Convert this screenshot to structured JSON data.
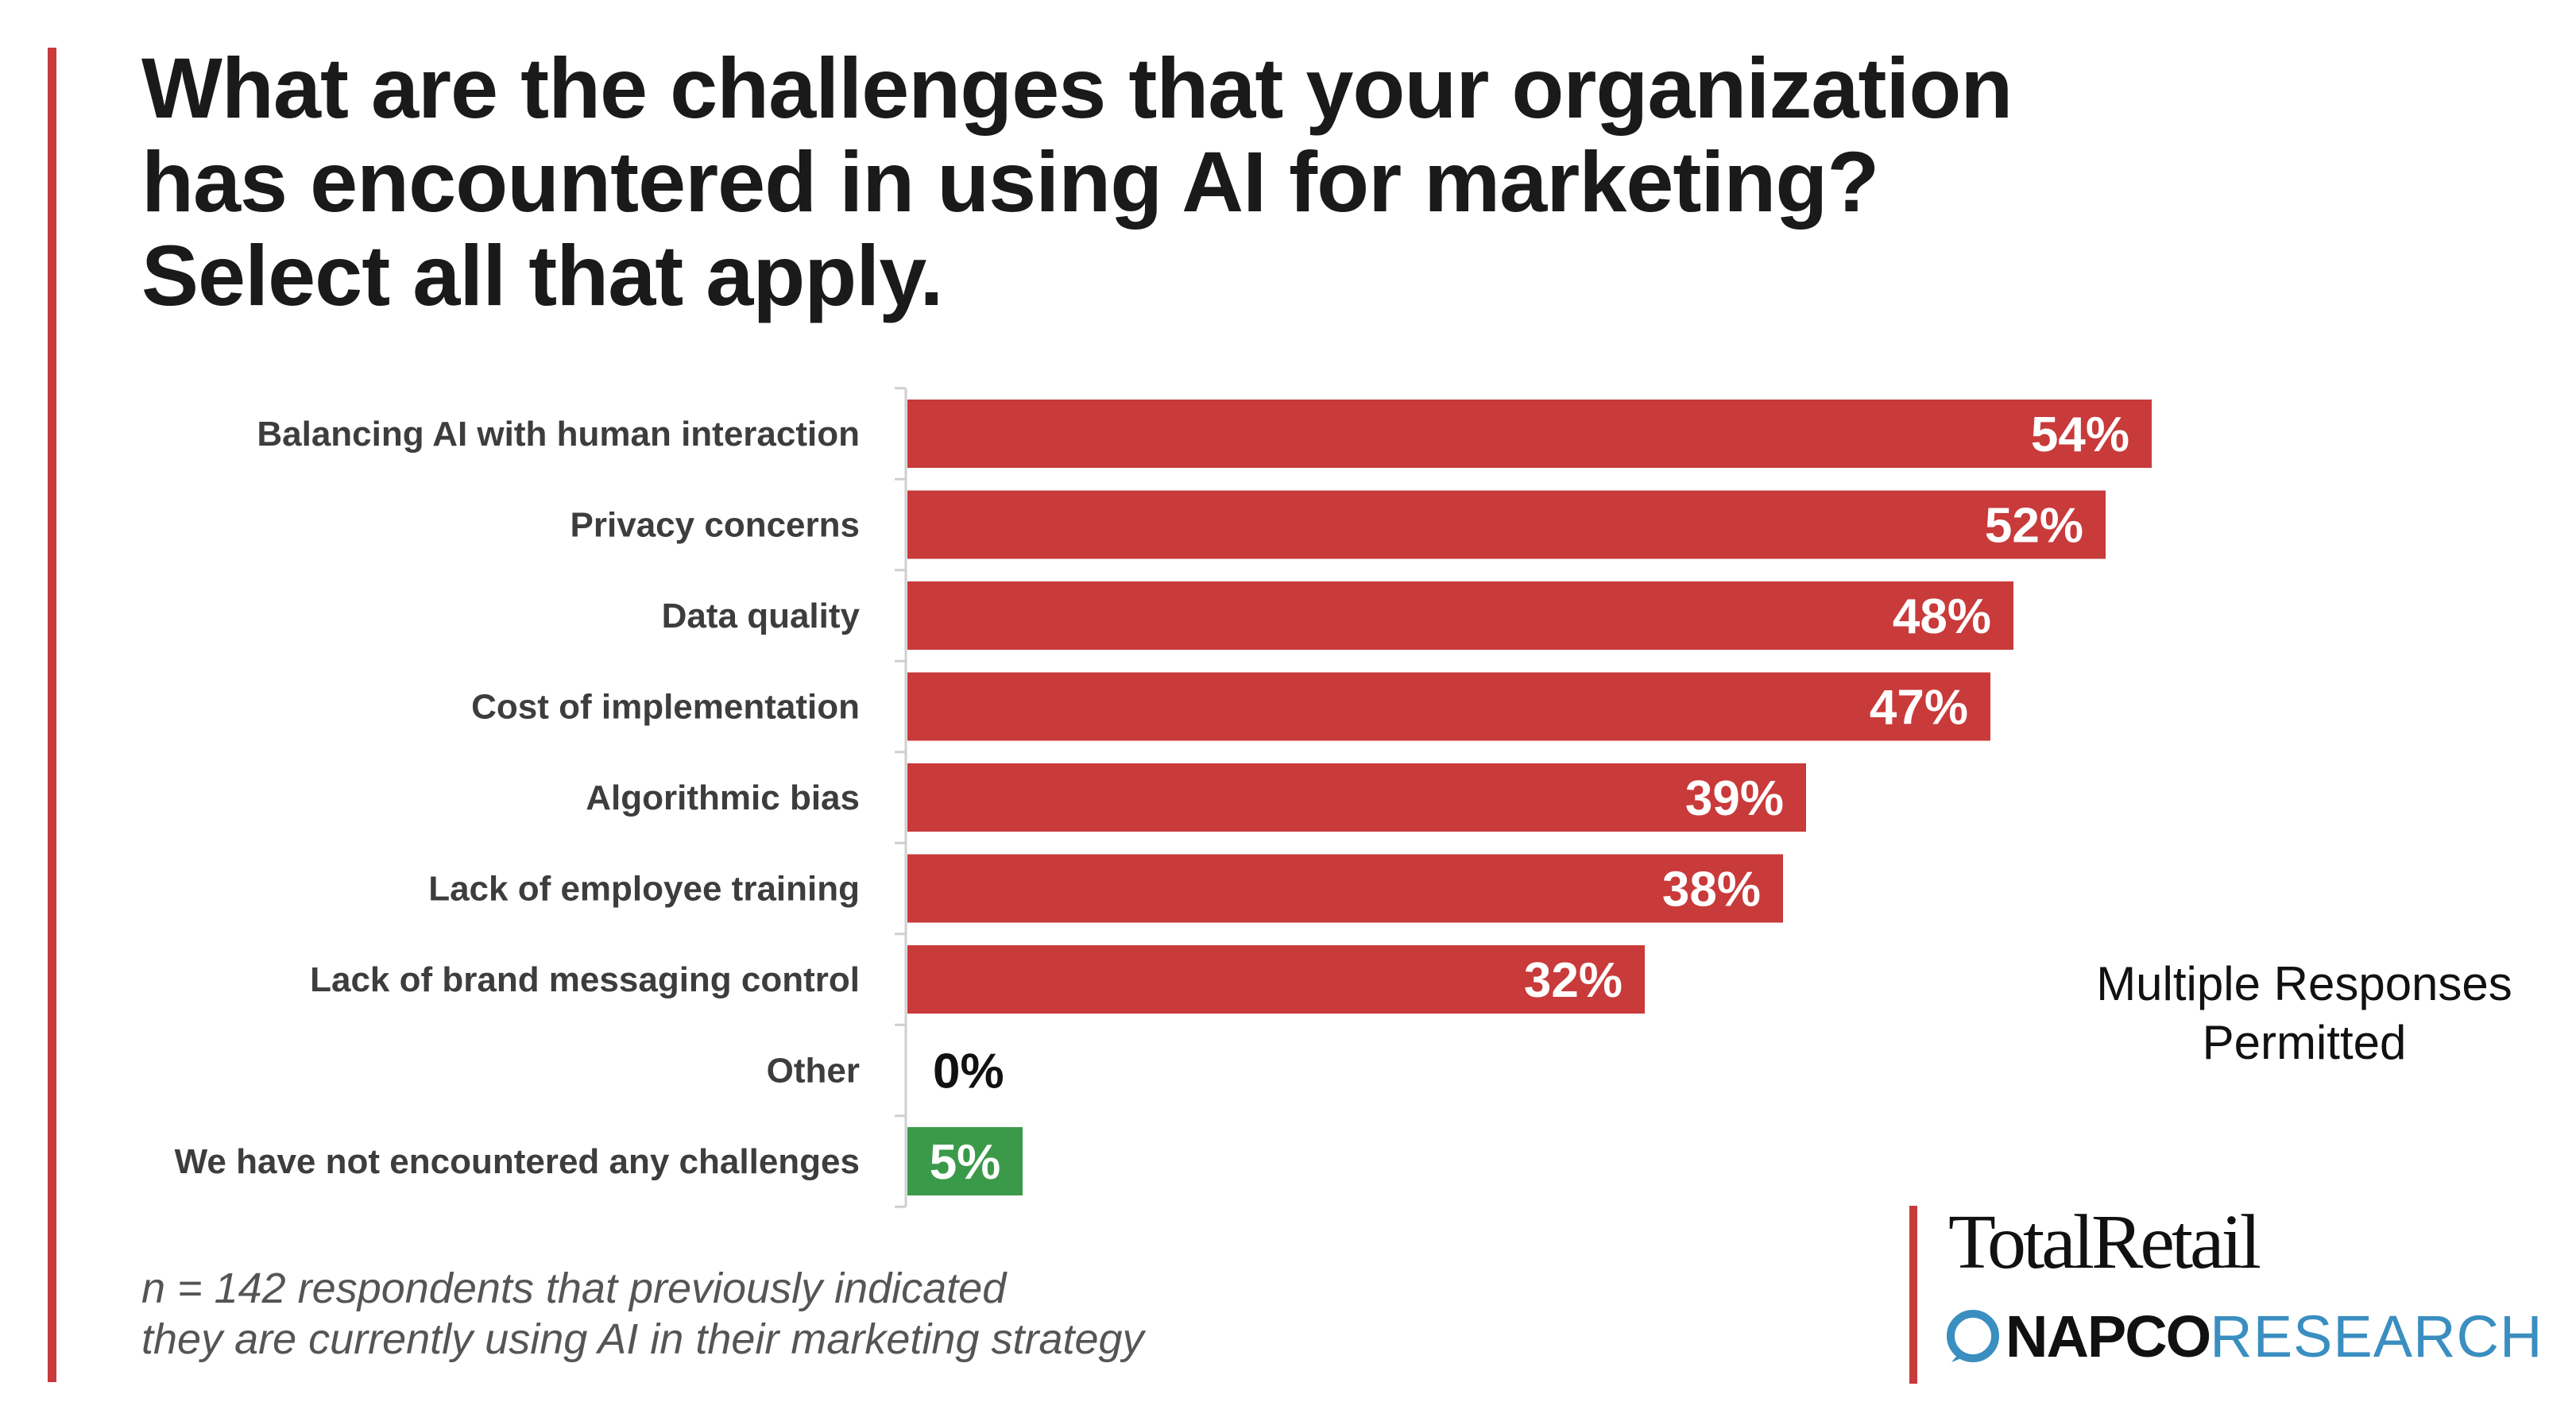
{
  "title": {
    "line1": "What are the challenges that your organization",
    "line2": "has encountered in using AI for marketing?",
    "line3": "Select all that apply."
  },
  "chart_data": {
    "type": "bar",
    "orientation": "horizontal",
    "title": "What are the challenges that your organization has encountered in using AI for marketing? Select all that apply.",
    "xlabel": "",
    "ylabel": "",
    "xlim": [
      0,
      60
    ],
    "unit": "%",
    "categories": [
      "Balancing AI with human interaction",
      "Privacy concerns",
      "Data quality",
      "Cost of implementation",
      "Algorithmic bias",
      "Lack of employee training",
      "Lack of brand messaging control",
      "Other",
      "We have not encountered any challenges"
    ],
    "values": [
      54,
      52,
      48,
      47,
      39,
      38,
      32,
      0,
      5
    ],
    "labels": [
      "54%",
      "52%",
      "48%",
      "47%",
      "39%",
      "38%",
      "32%",
      "0%",
      "5%"
    ],
    "colors": [
      "#c93a3a",
      "#c93a3a",
      "#c93a3a",
      "#c93a3a",
      "#c93a3a",
      "#c93a3a",
      "#c93a3a",
      "#c93a3a",
      "#3b9a4a"
    ],
    "grid": false,
    "legend": "none"
  },
  "note": {
    "line1": "Multiple Responses",
    "line2": "Permitted"
  },
  "footnote": {
    "line1": "n = 142 respondents that previously indicated",
    "line2": "they are currently using AI in their marketing strategy"
  },
  "brand": {
    "accent_color": "#c93a3a",
    "positive_color": "#3b9a4a",
    "research_color": "#3a8ec0",
    "logo_total_retail": "TotalRetail",
    "logo_napco": "NAPCO",
    "logo_research": "RESEARCH"
  }
}
